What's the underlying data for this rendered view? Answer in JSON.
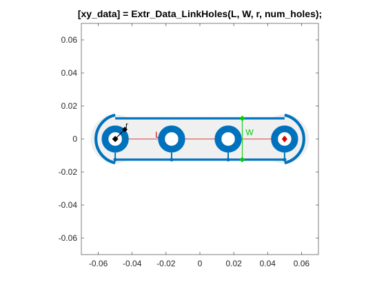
{
  "colors": {
    "link_fill": "#f0f0f0",
    "link_outline": "#0072bd",
    "centerline": "#cc0000",
    "width_dim": "#00cc00",
    "radius_dim": "#000000",
    "end_marker": "#dd0000",
    "axis": "#262626"
  },
  "chart_data": {
    "type": "diagram-plot",
    "title": "[xy_data] = Extr_Data_LinkHoles(L, W, r, num_holes);",
    "xlabel": "",
    "ylabel": "",
    "xlim": [
      -0.07,
      0.07
    ],
    "ylim": [
      -0.07,
      0.07
    ],
    "xticks": [
      -0.06,
      -0.04,
      -0.02,
      0,
      0.02,
      0.04,
      0.06
    ],
    "xtick_labels": [
      "-0.06",
      "-0.04",
      "-0.02",
      "0",
      "0.02",
      "0.04",
      "0.06"
    ],
    "yticks": [
      -0.06,
      -0.04,
      -0.02,
      0,
      0.02,
      0.04,
      0.06
    ],
    "ytick_labels": [
      "-0.06",
      "-0.04",
      "-0.02",
      "0",
      "0.02",
      "0.04",
      "0.06"
    ],
    "grid": false,
    "link": {
      "length": 0.1,
      "width": 0.025,
      "outer_radius": 0.0145,
      "hole_radius": 0.004,
      "ring_radius": 0.008,
      "hole_centers": [
        [
          -0.05,
          0
        ],
        [
          -0.0167,
          0
        ],
        [
          0.0167,
          0
        ],
        [
          0.05,
          0
        ]
      ]
    },
    "annotations": {
      "length_label": "L",
      "width_label": "W",
      "radius_label": "r"
    }
  }
}
